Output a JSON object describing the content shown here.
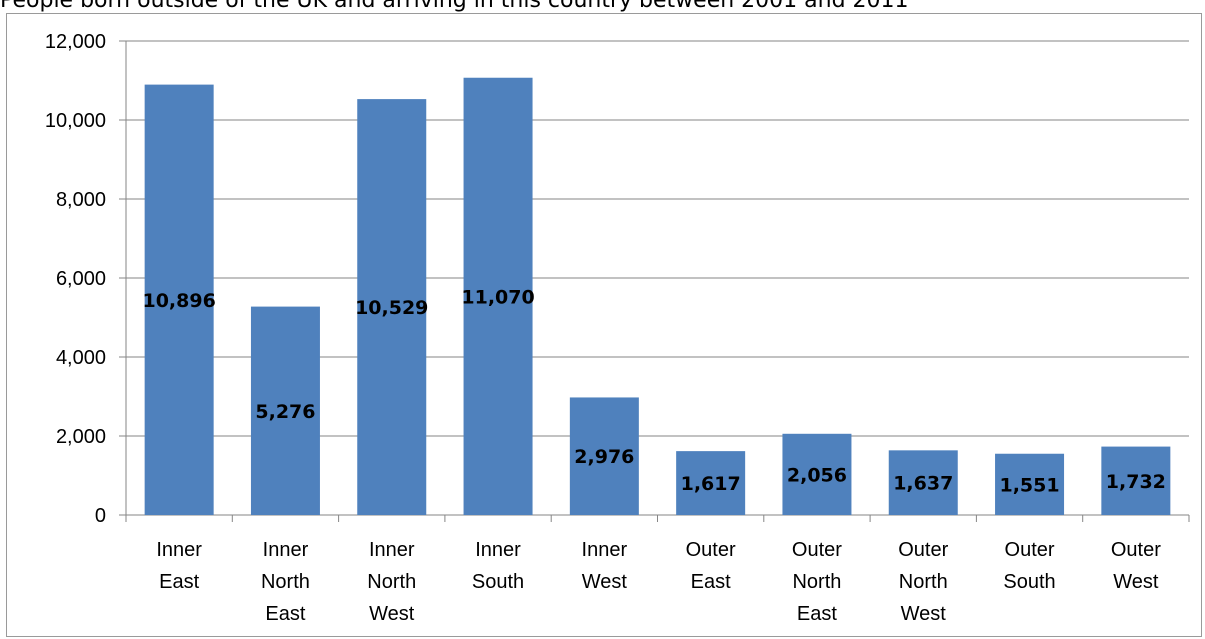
{
  "chart_data": {
    "type": "bar",
    "title": "People born outside of the UK and arriving in this country between 2001 and 2011",
    "categories": [
      [
        "Inner",
        "East"
      ],
      [
        "Inner",
        "North",
        "East"
      ],
      [
        "Inner",
        "North",
        "West"
      ],
      [
        "Inner",
        "South"
      ],
      [
        "Inner",
        "West"
      ],
      [
        "Outer",
        "East"
      ],
      [
        "Outer",
        "North",
        "East"
      ],
      [
        "Outer",
        "North",
        "West"
      ],
      [
        "Outer",
        "South"
      ],
      [
        "Outer",
        "West"
      ]
    ],
    "values": [
      10896,
      5276,
      10529,
      11070,
      2976,
      1617,
      2056,
      1637,
      1551,
      1732
    ],
    "value_labels": [
      "10,896",
      "5,276",
      "10,529",
      "11,070",
      "2,976",
      "1,617",
      "2,056",
      "1,637",
      "1,551",
      "1,732"
    ],
    "yticks": [
      "0",
      "2,000",
      "4,000",
      "6,000",
      "8,000",
      "10,000",
      "12,000"
    ],
    "ylim": [
      0,
      12000
    ],
    "xlabel": "",
    "ylabel": "",
    "grid": true,
    "legend": "none",
    "bar_color": "#4f81bd"
  }
}
